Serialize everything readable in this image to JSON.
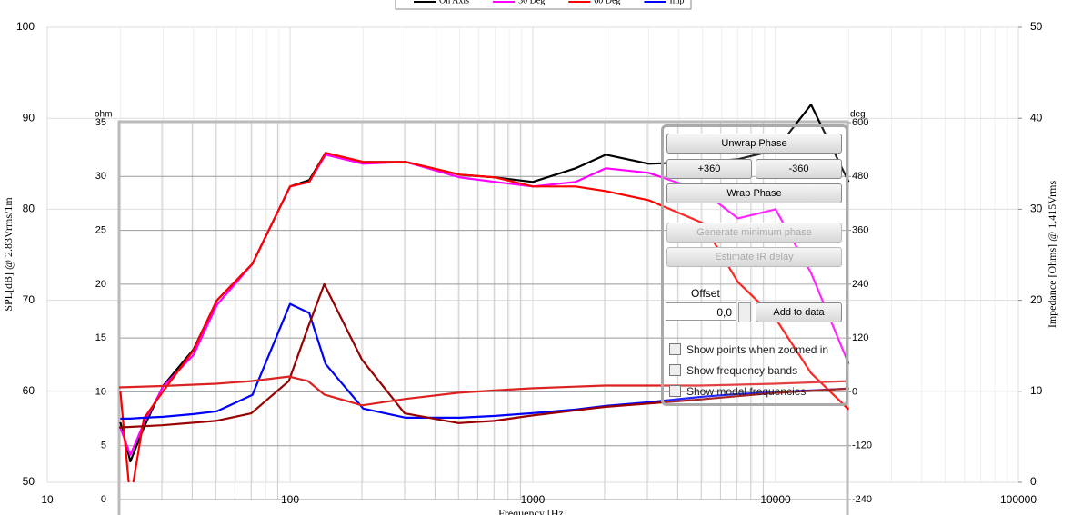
{
  "chart_data": [
    {
      "type": "line",
      "xlabel": "Frequency [Hz]",
      "ylabel": "SPL[dB] @ 2.83Vrms/1m",
      "y2label": "Impedance [Ohms] @ 1.415Vrms",
      "xscale": "log",
      "xlim": [
        10,
        100000
      ],
      "xticks": [
        10,
        100,
        1000,
        10000,
        100000
      ],
      "ylim": [
        50,
        100
      ],
      "yticks": [
        50,
        60,
        70,
        80,
        90,
        100
      ],
      "y2lim": [
        0,
        50
      ],
      "y2ticks": [
        0,
        10,
        20,
        30,
        40,
        50
      ],
      "grid": true,
      "legend": "top",
      "x": [
        20,
        22,
        25,
        30,
        40,
        50,
        70,
        100,
        120,
        140,
        200,
        300,
        500,
        700,
        1000,
        1500,
        2000,
        3000,
        5000,
        7000,
        10000,
        14000,
        20000
      ],
      "series": [
        {
          "name": "On Axis",
          "color": "#000000",
          "values": [
            56.6,
            52.3,
            56,
            60.6,
            64.6,
            70,
            74,
            82.5,
            83.2,
            86.2,
            85.2,
            85.2,
            83.8,
            83.5,
            83,
            84.5,
            86,
            85,
            85.2,
            85.5,
            86.5,
            91.5,
            83
          ]
        },
        {
          "name": "30 Deg",
          "color": "#ff00ff",
          "values": [
            56,
            53,
            56.5,
            60.5,
            64,
            69.5,
            74,
            82.5,
            83,
            86,
            85,
            85.2,
            83.5,
            83,
            82.5,
            83,
            84.5,
            84,
            82,
            79,
            80,
            73,
            63
          ]
        },
        {
          "name": "60 Deg",
          "color": "#ff0000",
          "values": [
            60,
            48,
            57,
            60,
            64.5,
            70,
            74,
            82.5,
            83,
            86.2,
            85.2,
            85.2,
            83.8,
            83.5,
            82.5,
            82.5,
            82,
            81,
            78.5,
            72,
            68,
            62,
            58
          ]
        },
        {
          "name": "Imp",
          "color": "#0000ff",
          "axis": "y2",
          "values": [
            7,
            7,
            7.1,
            7.2,
            7.5,
            7.8,
            9.6,
            19.6,
            18.6,
            13,
            8.1,
            7.1,
            7.1,
            7.3,
            7.6,
            8,
            8.4,
            8.8,
            9.4,
            9.7,
            9.9,
            10.1,
            10.3
          ]
        }
      ]
    },
    {
      "type": "line",
      "ylabel": "ohm",
      "y2label": "deg",
      "xscale": "log",
      "xlim": [
        20,
        20000
      ],
      "ylim": [
        0,
        35
      ],
      "yticks": [
        0,
        5,
        10,
        15,
        20,
        25,
        30,
        35
      ],
      "y2lim": [
        -240,
        600
      ],
      "y2ticks": [
        -240,
        -120,
        0,
        120,
        240,
        360,
        480,
        600
      ],
      "grid": true,
      "x": [
        20,
        30,
        50,
        70,
        100,
        120,
        140,
        200,
        300,
        500,
        700,
        1000,
        2000,
        5000,
        10000,
        20000
      ],
      "series": [
        {
          "color": "#990000",
          "values": [
            6.7,
            6.9,
            7.3,
            8,
            11,
            16,
            20,
            13,
            8,
            7.1,
            7.3,
            7.8,
            8.6,
            9.3,
            9.9,
            10.3
          ]
        },
        {
          "color": "#dd2222",
          "axis": "y2",
          "values": [
            10,
            13,
            18,
            24,
            34,
            24,
            -6,
            -30,
            -16,
            -2,
            3,
            8,
            14,
            14,
            18,
            24
          ]
        }
      ]
    }
  ],
  "panel": {
    "unwrap": "Unwrap Phase",
    "plus": "+360",
    "minus": "-360",
    "wrap": "Wrap Phase",
    "minphase": "Generate minimum phase",
    "irdelay": "Estimate IR delay",
    "offset_label": "Offset",
    "offset_value": "0,0",
    "add": "Add to data",
    "checks": [
      "Show points when zoomed in",
      "Show frequency bands",
      "Show modal frequencies"
    ]
  }
}
